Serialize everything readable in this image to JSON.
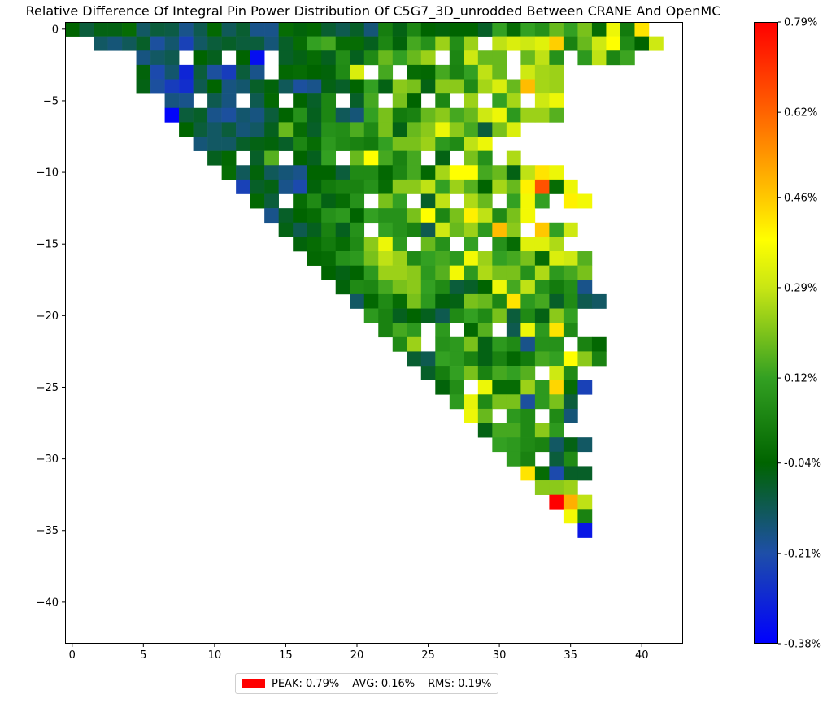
{
  "chart_data": {
    "type": "heatmap",
    "title": "Relative Difference Of Integral Pin Power Distribution Of C5G7_3D_unrodded Between CRANE And OpenMC",
    "xlabel": "",
    "ylabel": "",
    "xlim": [
      -0.5,
      42.9
    ],
    "ylim": [
      -42.9,
      0.5
    ],
    "x_ticks": [
      0,
      5,
      10,
      15,
      20,
      25,
      30,
      35,
      40
    ],
    "y_ticks": [
      0,
      -5,
      -10,
      -15,
      -20,
      -25,
      -30,
      -35,
      -40
    ],
    "x_tick_labels": [
      "0",
      "5",
      "10",
      "15",
      "20",
      "25",
      "30",
      "35",
      "40"
    ],
    "y_tick_labels": [
      "0",
      "−5",
      "−10",
      "−15",
      "−20",
      "−25",
      "−30",
      "−35",
      "−40"
    ],
    "grid": false,
    "layout": "upper-triangular (column index >= row index), row r plotted at y = -r",
    "missing_value": null,
    "rows": [
      [
        -0.04,
        -0.1,
        -0.06,
        -0.06,
        -0.02,
        -0.14,
        -0.1,
        -0.11,
        -0.18,
        -0.12,
        -0.03,
        -0.13,
        -0.09,
        -0.18,
        -0.18,
        -0.02,
        -0.05,
        -0.03,
        -0.09,
        -0.12,
        -0.08,
        -0.16,
        0.03,
        -0.06,
        0.05,
        -0.04,
        -0.05,
        -0.04,
        -0.04,
        -0.08,
        0.12,
        -0.02,
        0.12,
        0.08,
        0.18,
        0.12,
        0.2,
        -0.02,
        0.35,
        0.02,
        0.42
      ],
      [
        null,
        -0.14,
        -0.16,
        -0.13,
        -0.08,
        -0.2,
        -0.15,
        -0.24,
        -0.14,
        -0.1,
        -0.08,
        -0.1,
        -0.1,
        -0.16,
        -0.08,
        -0.02,
        0.12,
        0.14,
        -0.02,
        -0.02,
        -0.07,
        0.05,
        -0.05,
        0.14,
        0.08,
        0.24,
        0.07,
        0.24,
        null,
        0.28,
        0.32,
        0.3,
        0.33,
        0.45,
        0.04,
        0.18,
        0.3,
        0.38,
        0.06,
        -0.04,
        0.3
      ],
      [
        null,
        null,
        null,
        -0.17,
        -0.14,
        -0.12,
        null,
        -0.04,
        -0.07,
        null,
        -0.04,
        -0.35,
        null,
        -0.08,
        -0.06,
        -0.02,
        -0.07,
        0.07,
        -0.07,
        0.06,
        0.18,
        0.12,
        0.18,
        0.24,
        null,
        0.05,
        0.3,
        0.18,
        0.18,
        null,
        0.18,
        0.28,
        0.08,
        null,
        0.1,
        0.28,
        0.05,
        0.13
      ],
      [
        null,
        null,
        -0.05,
        -0.22,
        -0.15,
        -0.3,
        -0.1,
        -0.2,
        -0.25,
        -0.1,
        -0.18,
        null,
        -0.03,
        -0.02,
        -0.04,
        -0.05,
        0.06,
        0.32,
        null,
        0.14,
        null,
        -0.02,
        -0.03,
        0.14,
        0.04,
        0.12,
        0.28,
        0.18,
        null,
        0.3,
        0.25,
        0.24
      ],
      [
        null,
        -0.06,
        -0.2,
        -0.25,
        -0.28,
        -0.12,
        -0.04,
        -0.17,
        -0.15,
        -0.08,
        -0.05,
        -0.13,
        -0.2,
        -0.18,
        -0.06,
        -0.08,
        -0.04,
        0.12,
        -0.06,
        0.22,
        0.2,
        -0.06,
        0.22,
        0.22,
        0.06,
        0.25,
        0.32,
        0.18,
        0.48,
        0.25,
        0.24
      ],
      [
        null,
        null,
        -0.17,
        -0.18,
        null,
        -0.12,
        -0.17,
        null,
        -0.12,
        -0.03,
        null,
        -0.04,
        -0.08,
        0.05,
        null,
        -0.08,
        0.14,
        null,
        0.2,
        -0.04,
        null,
        0.05,
        null,
        0.24,
        null,
        0.12,
        0.25,
        null,
        0.3,
        0.35
      ],
      [
        null,
        -0.37,
        -0.1,
        -0.08,
        -0.18,
        -0.2,
        -0.15,
        -0.17,
        -0.1,
        -0.04,
        0.08,
        -0.07,
        0.05,
        -0.13,
        -0.16,
        0.12,
        0.2,
        0.02,
        0.04,
        0.18,
        0.22,
        0.14,
        0.18,
        0.3,
        0.35,
        0.1,
        0.24,
        0.24,
        0.16
      ],
      [
        null,
        -0.04,
        -0.1,
        -0.14,
        -0.1,
        -0.16,
        -0.14,
        -0.07,
        0.18,
        -0.02,
        -0.08,
        0.08,
        0.07,
        0.15,
        0.06,
        0.2,
        -0.06,
        0.18,
        0.22,
        0.35,
        0.22,
        0.14,
        -0.1,
        0.2,
        0.32
      ],
      [
        null,
        -0.16,
        -0.14,
        -0.14,
        -0.08,
        -0.06,
        -0.05,
        -0.08,
        0.05,
        -0.02,
        0.1,
        0.06,
        0.04,
        0.02,
        0.12,
        0.2,
        0.2,
        0.24,
        0.1,
        0.06,
        0.28,
        0.35
      ],
      [
        null,
        -0.07,
        -0.03,
        null,
        -0.08,
        0.16,
        null,
        -0.04,
        -0.07,
        0.12,
        null,
        0.18,
        0.38,
        0.14,
        0.04,
        0.14,
        null,
        -0.06,
        null,
        0.2,
        0.08,
        null,
        0.26
      ],
      [
        null,
        -0.02,
        -0.13,
        -0.05,
        -0.13,
        -0.16,
        -0.18,
        -0.04,
        -0.04,
        -0.1,
        0.06,
        0.06,
        -0.03,
        0.05,
        0.14,
        -0.03,
        0.25,
        0.38,
        0.38,
        0.14,
        0.18,
        -0.06,
        0.28,
        0.42,
        0.35
      ],
      [
        null,
        -0.24,
        -0.08,
        -0.06,
        -0.18,
        -0.22,
        -0.05,
        0.02,
        0.04,
        0.04,
        0.08,
        -0.02,
        0.22,
        0.22,
        0.28,
        0.12,
        0.24,
        0.16,
        -0.04,
        0.25,
        0.18,
        0.4,
        0.65,
        -0.02,
        0.35
      ],
      [
        null,
        -0.03,
        -0.1,
        null,
        -0.02,
        0.06,
        -0.06,
        -0.02,
        0.08,
        null,
        0.2,
        0.12,
        null,
        -0.08,
        0.28,
        null,
        0.26,
        0.18,
        null,
        0.12,
        0.36,
        0.12,
        null,
        0.4,
        0.36
      ],
      [
        null,
        -0.18,
        -0.08,
        -0.04,
        -0.02,
        0.08,
        0.1,
        -0.04,
        0.12,
        0.08,
        0.08,
        0.2,
        0.38,
        0.05,
        0.2,
        0.4,
        0.28,
        0.06,
        0.2,
        0.36
      ],
      [
        null,
        -0.06,
        -0.12,
        -0.07,
        0.04,
        -0.07,
        0.08,
        null,
        0.12,
        0.08,
        0.04,
        -0.12,
        0.3,
        0.18,
        0.24,
        0.1,
        0.48,
        0.22,
        null,
        0.46,
        0.12,
        0.3
      ],
      [
        null,
        -0.05,
        -0.02,
        0.02,
        -0.02,
        0.06,
        0.22,
        0.35,
        0.1,
        null,
        0.18,
        0.08,
        null,
        0.12,
        null,
        0.08,
        -0.02,
        0.33,
        0.33,
        0.26
      ],
      [
        null,
        -0.03,
        -0.02,
        0.08,
        0.1,
        0.2,
        0.28,
        0.24,
        0.06,
        0.12,
        0.14,
        0.1,
        0.36,
        0.24,
        0.12,
        0.14,
        0.2,
        -0.02,
        0.32,
        0.3,
        0.16
      ],
      [
        null,
        -0.04,
        -0.06,
        -0.04,
        0.1,
        0.24,
        0.24,
        0.22,
        0.1,
        0.16,
        0.36,
        0.1,
        0.26,
        0.2,
        0.2,
        0.08,
        0.26,
        0.1,
        0.14,
        0.2
      ],
      [
        null,
        -0.05,
        0.06,
        0.05,
        0.14,
        0.2,
        0.22,
        0.12,
        0.06,
        -0.1,
        -0.08,
        -0.04,
        0.35,
        0.14,
        0.28,
        0.08,
        0.02,
        0.07,
        -0.18
      ],
      [
        null,
        -0.14,
        -0.03,
        0.06,
        -0.02,
        0.2,
        0.1,
        -0.05,
        -0.06,
        0.2,
        0.18,
        0.05,
        0.42,
        0.1,
        0.14,
        -0.08,
        0.06,
        -0.12,
        -0.14
      ],
      [
        null,
        0.1,
        0.04,
        -0.07,
        -0.04,
        -0.07,
        -0.12,
        0.06,
        0.12,
        0.06,
        0.2,
        -0.1,
        0.06,
        -0.06,
        0.22,
        0.12
      ],
      [
        null,
        0.04,
        0.14,
        0.1,
        null,
        0.1,
        null,
        -0.03,
        0.16,
        null,
        -0.12,
        0.35,
        0.1,
        0.42,
        0.06
      ],
      [
        null,
        0.06,
        0.24,
        null,
        0.08,
        0.1,
        0.2,
        -0.06,
        0.1,
        0.06,
        -0.18,
        0.08,
        0.08,
        null,
        0.04,
        -0.03
      ],
      [
        null,
        -0.09,
        -0.12,
        0.12,
        0.1,
        0.04,
        -0.06,
        0.04,
        -0.03,
        0.02,
        0.14,
        0.12,
        0.38,
        0.22,
        0.04
      ],
      [
        null,
        -0.08,
        0.03,
        0.12,
        0.2,
        0.04,
        0.14,
        0.12,
        0.16,
        null,
        0.3,
        0.06
      ],
      [
        null,
        -0.05,
        0.07,
        null,
        0.35,
        -0.02,
        -0.02,
        0.24,
        0.1,
        0.44,
        -0.02,
        -0.24
      ],
      [
        null,
        0.1,
        0.34,
        0.06,
        0.2,
        0.2,
        -0.2,
        0.1,
        0.2,
        -0.1
      ],
      [
        null,
        0.35,
        0.18,
        null,
        0.1,
        0.06,
        null,
        0.06,
        -0.16
      ],
      [
        null,
        -0.06,
        0.14,
        0.14,
        0.06,
        0.22,
        0.1
      ],
      [
        null,
        0.12,
        0.1,
        0.06,
        0.04,
        -0.14,
        -0.06,
        -0.14
      ],
      [
        null,
        0.1,
        0.04,
        null,
        -0.1,
        0.06
      ],
      [
        null,
        0.42,
        -0.02,
        -0.22,
        -0.08,
        -0.08
      ],
      [
        null,
        0.22,
        0.22,
        0.24
      ],
      [
        null,
        0.79,
        0.5,
        0.28
      ],
      [
        null,
        0.36,
        0.04
      ],
      [
        null,
        -0.33
      ]
    ],
    "colorbar": {
      "min": -0.38,
      "max": 0.79,
      "tick_values": [
        0.79,
        0.62,
        0.46,
        0.29,
        0.12,
        -0.04,
        -0.21,
        -0.38
      ],
      "tick_labels": [
        "0.79%",
        "0.62%",
        "0.46%",
        "0.29%",
        "0.12%",
        "-0.04%",
        "-0.21%",
        "-0.38%"
      ],
      "colormap": [
        {
          "v": -0.38,
          "color": "#0000ff"
        },
        {
          "v": -0.21,
          "color": "#1e4fa8"
        },
        {
          "v": -0.04,
          "color": "#006400"
        },
        {
          "v": 0.12,
          "color": "#33a022"
        },
        {
          "v": 0.29,
          "color": "#c8e614"
        },
        {
          "v": 0.38,
          "color": "#ffff00"
        },
        {
          "v": 0.46,
          "color": "#ffc800"
        },
        {
          "v": 0.62,
          "color": "#ff6400"
        },
        {
          "v": 0.79,
          "color": "#ff0000"
        }
      ]
    }
  },
  "legend": {
    "swatch_color": "#ff0000",
    "peak": "PEAK: 0.79%",
    "avg": "AVG: 0.16%",
    "rms": "RMS: 0.19%"
  }
}
